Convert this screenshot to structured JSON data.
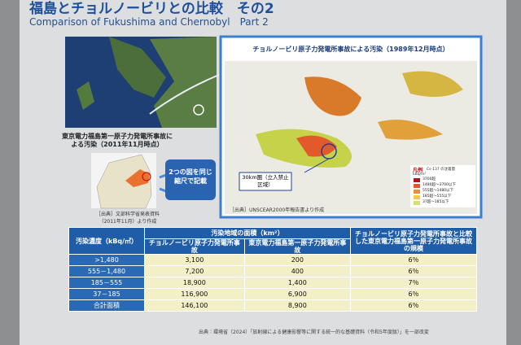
{
  "header": {
    "title": "福島とチョルノービリとの比較　その2",
    "subtitle": "Comparison of Fukushima and Chernobyl　Part 2"
  },
  "left_map": {
    "caption": "東京電力福島第一原子力発電所事故による汚染（2011年11月時点）",
    "source": "［出典］文部科学省発表資料（2011年11月）より作成"
  },
  "scale_note": "2つの図を同じ縮尺で記載",
  "right_map": {
    "caption": "チョルノービリ原子力発電所事故による汚染（1989年12月時点）",
    "zone_label": "30km圏（立入禁止区域）",
    "source": "［出典］UNSCEAR2000年報告書より作成",
    "legend": {
      "title": "凡例",
      "subtitle": "Cs-137 の沈着量",
      "unit": "kBq/m²",
      "items": [
        "3700超",
        "1480超〜3700以下",
        "555超〜1480以下",
        "185超〜555以下",
        "37超〜185以下"
      ]
    }
  },
  "table": {
    "headers": [
      "汚染濃度（kBq/㎡）",
      "汚染地域の面積（km²）",
      "チョルノービリ原子力発電所事故",
      "東京電力福島第一原子力発電所事故",
      "チョルノービリ原子力発電所事故と比較した東京電力福島第一原子力発電所事故の規模"
    ],
    "rows": [
      [
        ">1,480",
        "3,100",
        "200",
        "6％"
      ],
      [
        "555－1,480",
        "7,200",
        "400",
        "6％"
      ],
      [
        "185－555",
        "18,900",
        "1,400",
        "7％"
      ],
      [
        "37－185",
        "116,900",
        "6,900",
        "6％"
      ],
      [
        "合計面積",
        "146,100",
        "8,900",
        "6％"
      ]
    ]
  },
  "footer": "出典：環境省（2024）「放射線による健康影響等に関する統一的な基礎資料（令和5年度版）」を一部改変"
}
